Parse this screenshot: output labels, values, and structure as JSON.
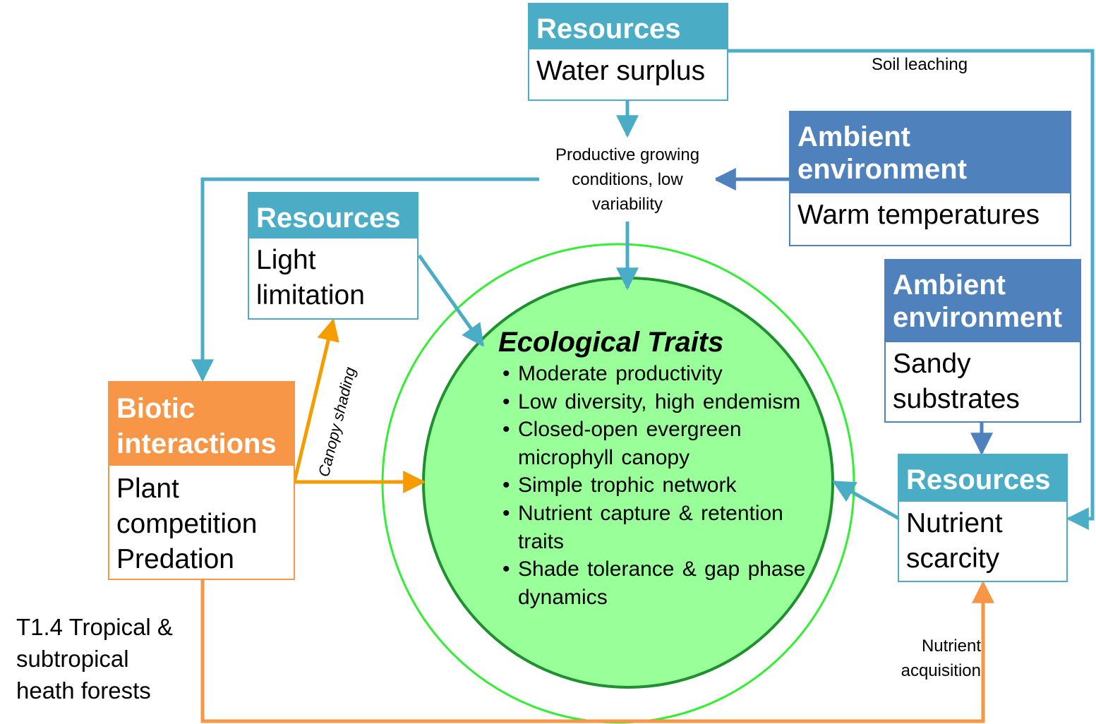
{
  "resources_water": {
    "header": "Resources",
    "body": "Water surplus"
  },
  "resources_light": {
    "header": "Resources",
    "body_line1": "Light",
    "body_line2": "limitation"
  },
  "ambient_warm": {
    "header_line1": "Ambient",
    "header_line2": "environment",
    "body": "Warm temperatures"
  },
  "ambient_sandy": {
    "header_line1": "Ambient",
    "header_line2": "environment",
    "body_line1": "Sandy",
    "body_line2": "substrates"
  },
  "resources_nutrient": {
    "header": "Resources",
    "body_line1": "Nutrient",
    "body_line2": "scarcity"
  },
  "biotic": {
    "header_line1": "Biotic",
    "header_line2": "interactions",
    "body_line1": "Plant",
    "body_line2": "competition",
    "body_line3": "Predation"
  },
  "labels": {
    "productive_line1": "Productive growing",
    "productive_line2": "conditions, low",
    "productive_line3": "variability",
    "soil_leaching": "Soil leaching",
    "canopy_shading": "Canopy shading",
    "nutrient_acq_line1": "Nutrient",
    "nutrient_acq_line2": "acquisition"
  },
  "traits": {
    "title": "Ecological Traits",
    "items": [
      "Moderate productivity",
      "Low diversity, high endemism",
      "Closed-open evergreen microphyll canopy",
      "Simple trophic network",
      "Nutrient capture & retention traits",
      "Shade tolerance & gap phase dynamics"
    ]
  },
  "caption": {
    "line1": "T1.4 Tropical &",
    "line2": "subtropical",
    "line3": "heath forests"
  },
  "colors": {
    "teal": "#4bacc6",
    "blue": "#4f81bd",
    "orange": "#f79646",
    "arrow_orange": "#f59c00",
    "circle_fill": "#99ff99",
    "circle_border": "#1f8f2f",
    "outer_ring": "#33ee33"
  }
}
